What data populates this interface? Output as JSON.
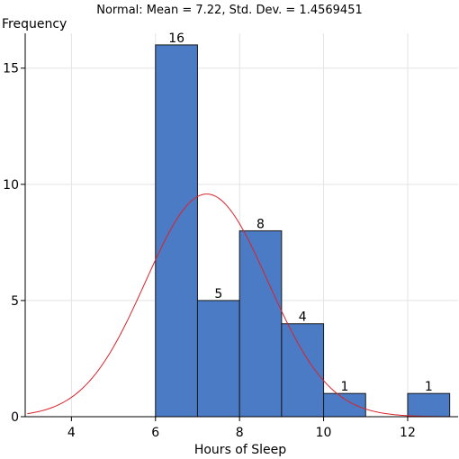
{
  "chart_data": {
    "type": "bar",
    "title": "Normal: Mean = 7.22, Std. Dev. = 1.4569451",
    "xlabel": "Hours of Sleep",
    "ylabel": "Frequency",
    "xlim": [
      2.9,
      13.2
    ],
    "ylim": [
      0,
      16.5
    ],
    "x_ticks": [
      4,
      6,
      8,
      10,
      12
    ],
    "y_ticks": [
      0,
      5,
      10,
      15
    ],
    "grid": true,
    "bins": [
      {
        "start": 6,
        "end": 7,
        "value": 16,
        "label": "16"
      },
      {
        "start": 7,
        "end": 8,
        "value": 5,
        "label": "5"
      },
      {
        "start": 8,
        "end": 9,
        "value": 8,
        "label": "8"
      },
      {
        "start": 9,
        "end": 10,
        "value": 4,
        "label": "4"
      },
      {
        "start": 10,
        "end": 11,
        "value": 1,
        "label": "1"
      },
      {
        "start": 12,
        "end": 13,
        "value": 1,
        "label": "1"
      }
    ],
    "curve": {
      "type": "normal",
      "mean": 7.22,
      "std": 1.4569451,
      "n": 35,
      "bin_width": 1,
      "x_range": [
        2.95,
        13.0
      ]
    },
    "colors": {
      "bar": "#4a7bc4",
      "curve": "#d9232b"
    }
  }
}
